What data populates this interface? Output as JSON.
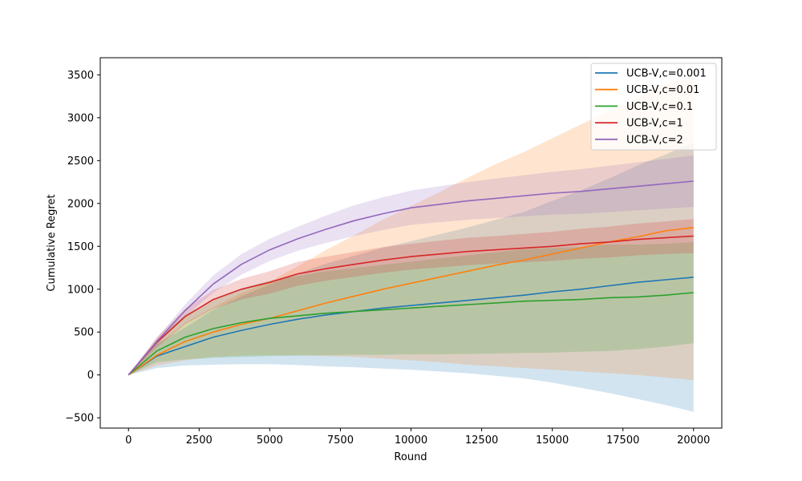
{
  "chart_data": {
    "type": "line",
    "title": "",
    "xlabel": "Round",
    "ylabel": "Cumulative Regret",
    "xlim": [
      -1000,
      21000
    ],
    "ylim": [
      -620,
      3700
    ],
    "xticks": [
      0,
      2500,
      5000,
      7500,
      10000,
      12500,
      15000,
      17500,
      20000
    ],
    "yticks": [
      -500,
      0,
      500,
      1000,
      1500,
      2000,
      2500,
      3000,
      3500
    ],
    "grid": false,
    "legend_position": "top-right",
    "x": [
      0,
      1000,
      2000,
      3000,
      4000,
      5000,
      6000,
      7000,
      8000,
      9000,
      10000,
      11000,
      12000,
      13000,
      14000,
      15000,
      16000,
      17000,
      18000,
      19000,
      20000
    ],
    "series": [
      {
        "name": "UCB-V,c=0.001",
        "color": "#1f77b4",
        "values": [
          0,
          220,
          330,
          440,
          520,
          590,
          650,
          700,
          740,
          780,
          810,
          840,
          870,
          900,
          930,
          970,
          1000,
          1040,
          1080,
          1110,
          1140
        ],
        "lower": [
          0,
          80,
          110,
          120,
          125,
          125,
          115,
          100,
          90,
          75,
          60,
          40,
          20,
          -10,
          -40,
          -90,
          -150,
          -210,
          -280,
          -350,
          -430
        ],
        "upper": [
          0,
          360,
          550,
          760,
          915,
          1055,
          1185,
          1300,
          1390,
          1485,
          1560,
          1640,
          1720,
          1810,
          1900,
          2030,
          2150,
          2290,
          2440,
          2570,
          2710
        ]
      },
      {
        "name": "UCB-V,c=0.01",
        "color": "#ff7f0e",
        "values": [
          0,
          230,
          390,
          500,
          590,
          660,
          750,
          840,
          920,
          1000,
          1070,
          1140,
          1210,
          1280,
          1340,
          1410,
          1480,
          1550,
          1610,
          1680,
          1720
        ],
        "lower": [
          0,
          110,
          170,
          210,
          225,
          230,
          230,
          220,
          210,
          190,
          170,
          150,
          120,
          100,
          80,
          60,
          40,
          20,
          0,
          -30,
          -60
        ],
        "upper": [
          0,
          350,
          610,
          790,
          955,
          1090,
          1270,
          1460,
          1630,
          1810,
          1970,
          2130,
          2300,
          2460,
          2600,
          2760,
          2920,
          3080,
          3220,
          3390,
          3500
        ]
      },
      {
        "name": "UCB-V,c=0.1",
        "color": "#2ca02c",
        "values": [
          0,
          280,
          440,
          540,
          610,
          660,
          690,
          720,
          740,
          760,
          780,
          800,
          820,
          840,
          860,
          870,
          880,
          900,
          910,
          930,
          960
        ],
        "lower": [
          0,
          150,
          180,
          200,
          210,
          220,
          225,
          230,
          235,
          235,
          240,
          240,
          245,
          250,
          255,
          260,
          270,
          280,
          300,
          330,
          370
        ],
        "upper": [
          0,
          410,
          700,
          880,
          1010,
          1100,
          1155,
          1210,
          1245,
          1285,
          1320,
          1360,
          1395,
          1430,
          1465,
          1480,
          1490,
          1520,
          1520,
          1530,
          1550
        ]
      },
      {
        "name": "UCB-V,c=1",
        "color": "#d62728",
        "values": [
          0,
          380,
          680,
          880,
          1000,
          1080,
          1180,
          1240,
          1290,
          1340,
          1380,
          1410,
          1440,
          1460,
          1480,
          1500,
          1530,
          1550,
          1580,
          1600,
          1620
        ],
        "lower": [
          0,
          320,
          590,
          770,
          880,
          950,
          1040,
          1100,
          1145,
          1190,
          1230,
          1255,
          1280,
          1300,
          1315,
          1330,
          1355,
          1370,
          1395,
          1410,
          1420
        ],
        "upper": [
          0,
          440,
          770,
          990,
          1120,
          1210,
          1320,
          1380,
          1435,
          1490,
          1530,
          1565,
          1600,
          1620,
          1645,
          1670,
          1705,
          1730,
          1765,
          1790,
          1820
        ]
      },
      {
        "name": "UCB-V,c=2",
        "color": "#9467bd",
        "values": [
          0,
          390,
          750,
          1060,
          1290,
          1460,
          1590,
          1700,
          1800,
          1880,
          1950,
          1990,
          2030,
          2060,
          2090,
          2120,
          2140,
          2170,
          2200,
          2230,
          2260
        ],
        "lower": [
          0,
          350,
          680,
          960,
          1170,
          1330,
          1450,
          1540,
          1620,
          1690,
          1750,
          1780,
          1810,
          1830,
          1850,
          1870,
          1880,
          1900,
          1920,
          1940,
          1960
        ],
        "upper": [
          0,
          430,
          820,
          1160,
          1410,
          1590,
          1730,
          1860,
          1980,
          2070,
          2150,
          2200,
          2250,
          2290,
          2330,
          2370,
          2400,
          2440,
          2480,
          2520,
          2560
        ]
      }
    ]
  }
}
